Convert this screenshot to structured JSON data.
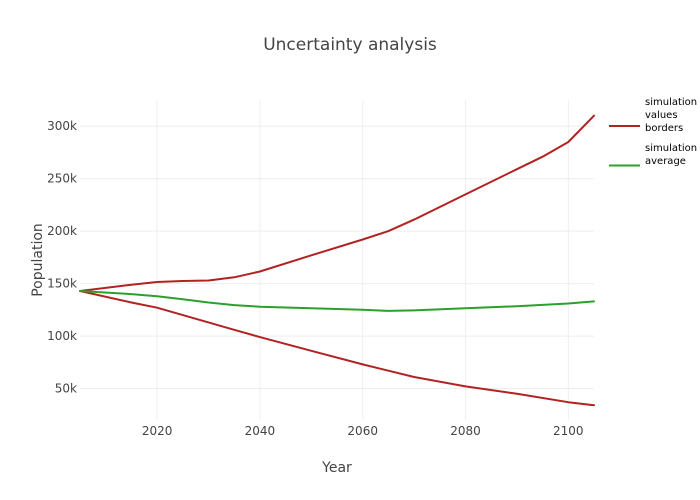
{
  "chart_data": {
    "type": "line",
    "title": "Uncertainty analysis",
    "xlabel": "Year",
    "ylabel": "Population",
    "xlim": [
      2005,
      2105
    ],
    "ylim": [
      20000,
      325000
    ],
    "x_ticks": [
      2020,
      2040,
      2060,
      2080,
      2100
    ],
    "x_tick_labels": [
      "2020",
      "2040",
      "2060",
      "2080",
      "2100"
    ],
    "y_ticks": [
      50000,
      100000,
      150000,
      200000,
      250000,
      300000
    ],
    "y_tick_labels": [
      "50k",
      "100k",
      "150k",
      "200k",
      "250k",
      "300k"
    ],
    "grid": true,
    "legend_position": "right",
    "legend": [
      {
        "lines": [
          "simulation",
          "values",
          "borders"
        ],
        "color": "#b22222"
      },
      {
        "lines": [
          "simulation",
          "average"
        ],
        "color": "#2ca02c"
      }
    ],
    "series": [
      {
        "name": "simulation values borders",
        "color": "#b22222",
        "x": [
          2005,
          2015,
          2020,
          2025,
          2030,
          2035,
          2040,
          2050,
          2060,
          2065,
          2070,
          2080,
          2090,
          2095,
          2100,
          2105
        ],
        "y": [
          143000,
          149000,
          151500,
          152500,
          153000,
          156000,
          161500,
          177000,
          192000,
          200000,
          211000,
          235000,
          259000,
          271000,
          285000,
          310000
        ]
      },
      {
        "name": "",
        "color": "#b22222",
        "x": [
          2005,
          2015,
          2020,
          2025,
          2030,
          2035,
          2040,
          2050,
          2060,
          2065,
          2070,
          2080,
          2090,
          2100,
          2105
        ],
        "y": [
          143000,
          132000,
          127000,
          120000,
          113000,
          106000,
          99000,
          86000,
          73000,
          67000,
          61000,
          52000,
          45000,
          37000,
          34000
        ]
      },
      {
        "name": "simulation average",
        "color": "#2ca02c",
        "x": [
          2005,
          2015,
          2020,
          2025,
          2030,
          2035,
          2040,
          2050,
          2060,
          2065,
          2070,
          2080,
          2090,
          2100,
          2105
        ],
        "y": [
          143000,
          140000,
          138000,
          135000,
          132000,
          129500,
          128000,
          126500,
          125000,
          124000,
          124500,
          126500,
          128500,
          131000,
          133000
        ]
      }
    ]
  }
}
